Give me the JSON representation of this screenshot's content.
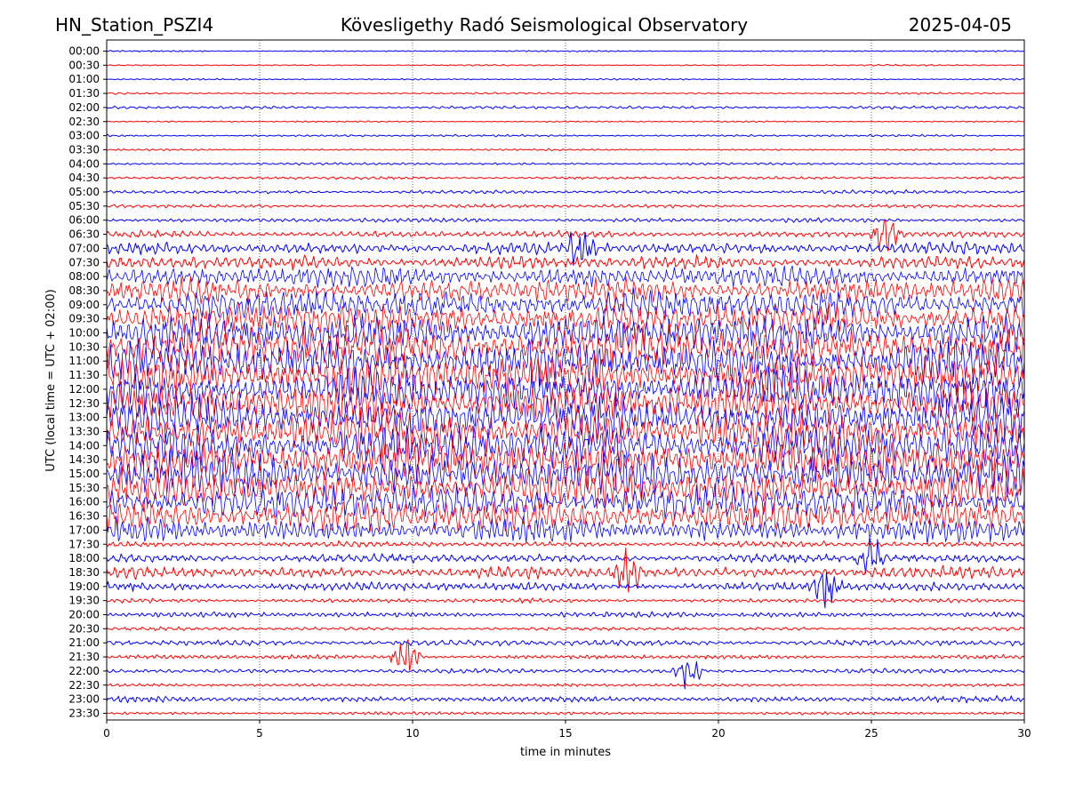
{
  "header": {
    "station": "HN_Station_PSZI4",
    "observatory": "Kövesligethy Radó Seismological Observatory",
    "date": "2025-04-05"
  },
  "chart_data": {
    "type": "line",
    "title": "Kövesligethy Radó Seismological Observatory",
    "xlabel": "time in minutes",
    "ylabel": "UTC (local time = UTC + 02:00)",
    "xlim": [
      0,
      30
    ],
    "x_ticks": [
      "0",
      "5",
      "10",
      "15",
      "20",
      "25",
      "30"
    ],
    "x_tick_values": [
      0,
      5,
      10,
      15,
      20,
      25,
      30
    ],
    "grid": "vertical dotted at each x tick",
    "trace_colors": [
      "#0000ff",
      "#ff0000"
    ],
    "trace_labels": [
      "00:00",
      "00:30",
      "01:00",
      "01:30",
      "02:00",
      "02:30",
      "03:00",
      "03:30",
      "04:00",
      "04:30",
      "05:00",
      "05:30",
      "06:00",
      "06:30",
      "07:00",
      "07:30",
      "08:00",
      "08:30",
      "09:00",
      "09:30",
      "10:00",
      "10:30",
      "11:00",
      "11:30",
      "12:00",
      "12:30",
      "13:00",
      "13:30",
      "14:00",
      "14:30",
      "15:00",
      "15:30",
      "16:00",
      "16:30",
      "17:00",
      "17:30",
      "18:00",
      "18:30",
      "19:00",
      "19:30",
      "20:00",
      "20:30",
      "21:00",
      "21:30",
      "22:00",
      "22:30",
      "23:00",
      "23:30"
    ],
    "trace_activity": [
      0.05,
      0.05,
      0.05,
      0.06,
      0.1,
      0.05,
      0.07,
      0.06,
      0.08,
      0.1,
      0.12,
      0.12,
      0.15,
      0.22,
      0.4,
      0.45,
      0.7,
      0.85,
      1.0,
      1.1,
      1.3,
      1.4,
      1.4,
      1.4,
      1.4,
      1.4,
      1.4,
      1.4,
      1.4,
      1.4,
      1.4,
      1.3,
      1.2,
      1.1,
      0.8,
      0.2,
      0.3,
      0.4,
      0.3,
      0.15,
      0.18,
      0.12,
      0.2,
      0.15,
      0.15,
      0.1,
      0.2,
      0.1
    ],
    "events": [
      {
        "trace": "21:30",
        "minute": 9.8,
        "amplitude": 2.0
      },
      {
        "trace": "22:00",
        "minute": 19.0,
        "amplitude": 1.5
      },
      {
        "trace": "19:00",
        "minute": 23.5,
        "amplitude": 1.8
      },
      {
        "trace": "18:00",
        "minute": 25.0,
        "amplitude": 2.0
      },
      {
        "trace": "06:30",
        "minute": 25.5,
        "amplitude": 1.8
      },
      {
        "trace": "07:00",
        "minute": 15.5,
        "amplitude": 1.8
      },
      {
        "trace": "18:30",
        "minute": 17.0,
        "amplitude": 2.0
      }
    ]
  }
}
